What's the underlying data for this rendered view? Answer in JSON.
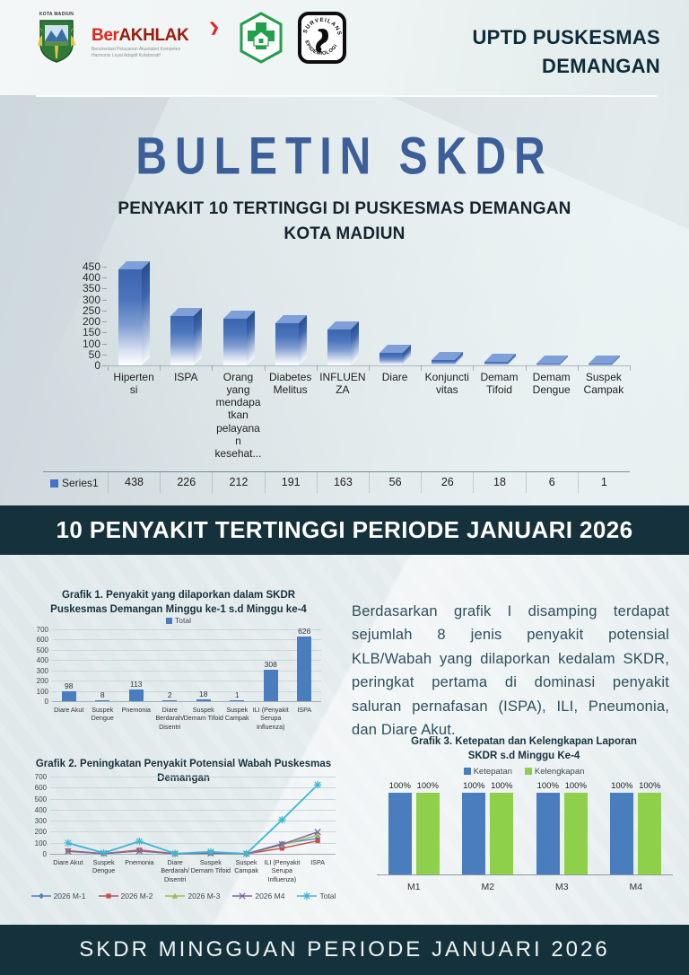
{
  "theme": {
    "banner_bg": "#15313c",
    "title_blue": "#3d5f99",
    "excel_blue": "#4a7dbd",
    "excel_green": "#8ed049"
  },
  "header": {
    "org_line1": "UPTD PUSKESMAS",
    "org_line2": "DEMANGAN",
    "logos": {
      "kota_madiun_label": "KOTA MADIUN",
      "berakhlak_prefix": "Ber",
      "berakhlak_main": "AKHLAK",
      "berakhlak_arrow": "❯",
      "berakhlak_tagline_line1": "Berorientasi Pelayanan Akuntabel Kompeten",
      "berakhlak_tagline_line2": "Harmonis Loyal Adaptif Kolaboratif",
      "surveilans_top": "SURVEILANS",
      "surveilans_bottom": "EPIDEMIOLOGI"
    }
  },
  "bulletin": {
    "title": "BULETIN SKDR",
    "subtitle_line1": "PENYAKIT 10 TERTINGGI DI PUSKESMAS DEMANGAN",
    "subtitle_line2": "KOTA MADIUN"
  },
  "banner": {
    "text": "10 PENYAKIT TERTINGGI PERIODE JANUARI 2026"
  },
  "narrative": "Berdasarkan grafik I disamping terdapat sejumlah 8 jenis penyakit potensial KLB/Wabah yang dilaporkan kedalam SKDR, peringkat pertama di dominasi penyakit saluran pernafasan (ISPA), ILI, Pneumonia, dan Diare Akut.",
  "footer": {
    "text": "SKDR MINGGUAN PERIODE JANUARI 2026"
  },
  "chart_data": [
    {
      "id": "top10",
      "type": "bar",
      "style": "3d-gradient",
      "title": "PENYAKIT 10 TERTINGGI DI PUSKESMAS DEMANGAN KOTA MADIUN",
      "legend": [
        "Series1"
      ],
      "legend_position": "bottom-table",
      "categories": [
        "Hipertensi",
        "ISPA",
        "Orang yang mendapatkan pelayanan kesehat...",
        "Diabetes Melitus",
        "INFLUENZA",
        "Diare",
        "Konjunctivitas",
        "Demam Tifoid",
        "Demam Dengue",
        "Suspek Campak"
      ],
      "display_lines": [
        [
          "Hiperten",
          "si"
        ],
        [
          "ISPA"
        ],
        [
          "Orang",
          "yang",
          "mendapa",
          "tkan",
          "pelayana",
          "n",
          "kesehat..."
        ],
        [
          "Diabetes",
          "Melitus"
        ],
        [
          "INFLUEN",
          "ZA"
        ],
        [
          "Diare"
        ],
        [
          "Konjuncti",
          "vitas"
        ],
        [
          "Demam",
          "Tifoid"
        ],
        [
          "Demam",
          "Dengue"
        ],
        [
          "Suspek",
          "Campak"
        ]
      ],
      "values": [
        438,
        226,
        212,
        191,
        163,
        56,
        26,
        18,
        6,
        1
      ],
      "ylim": [
        0,
        450
      ],
      "ytick_step": 50,
      "grid": false
    },
    {
      "id": "grafik1",
      "type": "bar",
      "title": "Grafik 1. Penyakit yang dilaporkan dalam SKDR Puskesmas Demangan Minggu ke-1 s.d Minggu ke-4",
      "legend": [
        "Total"
      ],
      "legend_position": "top",
      "bar_color": "#4a7dbd",
      "categories": [
        "Diare Akut",
        "Suspek Dengue",
        "Pnemonia",
        "Diare Berdarah/ Disentri",
        "Suspek Demam Tifoid",
        "Suspek Campak",
        "ILI (Penyakit Serupa Influenza)",
        "ISPA"
      ],
      "values": [
        98,
        8,
        113,
        2,
        18,
        1,
        308,
        626
      ],
      "ylim": [
        0,
        700
      ],
      "ytick_step": 100,
      "grid": true
    },
    {
      "id": "grafik2",
      "type": "line",
      "title": "Grafik 2. Peningkatan Penyakit Potensial Wabah Puskesmas Demangan",
      "categories": [
        "Diare Akut",
        "Suspek Dengue",
        "Pnemonia",
        "Diare Berdarah/ Disentri",
        "Suspek Demam Tifoid",
        "Suspek Campak",
        "ILI (Penyakit Serupa Influenza)",
        "ISPA"
      ],
      "series": [
        {
          "name": "2026 M-1",
          "color": "#4F81BD",
          "marker": "diamond",
          "values": [
            25,
            2,
            27,
            0,
            5,
            0,
            92,
            140
          ]
        },
        {
          "name": "2026 M-2",
          "color": "#C0504D",
          "marker": "square",
          "values": [
            28,
            2,
            35,
            1,
            5,
            0,
            50,
            118
          ]
        },
        {
          "name": "2026 M-3",
          "color": "#9BBB59",
          "marker": "triangle",
          "values": [
            22,
            2,
            26,
            0,
            4,
            0,
            80,
            170
          ]
        },
        {
          "name": "2026 M4",
          "color": "#8064A2",
          "marker": "x",
          "values": [
            23,
            2,
            25,
            1,
            4,
            1,
            86,
            198
          ]
        },
        {
          "name": "Total",
          "color": "#3EB6D4",
          "marker": "star",
          "values": [
            98,
            8,
            113,
            2,
            18,
            1,
            308,
            626
          ]
        }
      ],
      "ylim": [
        0,
        700
      ],
      "ytick_step": 100,
      "grid": true,
      "legend_position": "bottom"
    },
    {
      "id": "grafik3",
      "type": "bar",
      "title": "Grafik 3. Ketepatan dan Kelengkapan Laporan SKDR s.d Minggu Ke-4",
      "categories": [
        "M1",
        "M2",
        "M3",
        "M4"
      ],
      "series": [
        {
          "name": "Ketepatan",
          "color": "#4a7dbd",
          "values": [
            100,
            100,
            100,
            100
          ]
        },
        {
          "name": "Kelengkapan",
          "color": "#8ed049",
          "values": [
            100,
            100,
            100,
            100
          ]
        }
      ],
      "value_suffix": "%",
      "ylim": [
        0,
        110
      ],
      "grid": false,
      "legend_position": "top"
    }
  ]
}
